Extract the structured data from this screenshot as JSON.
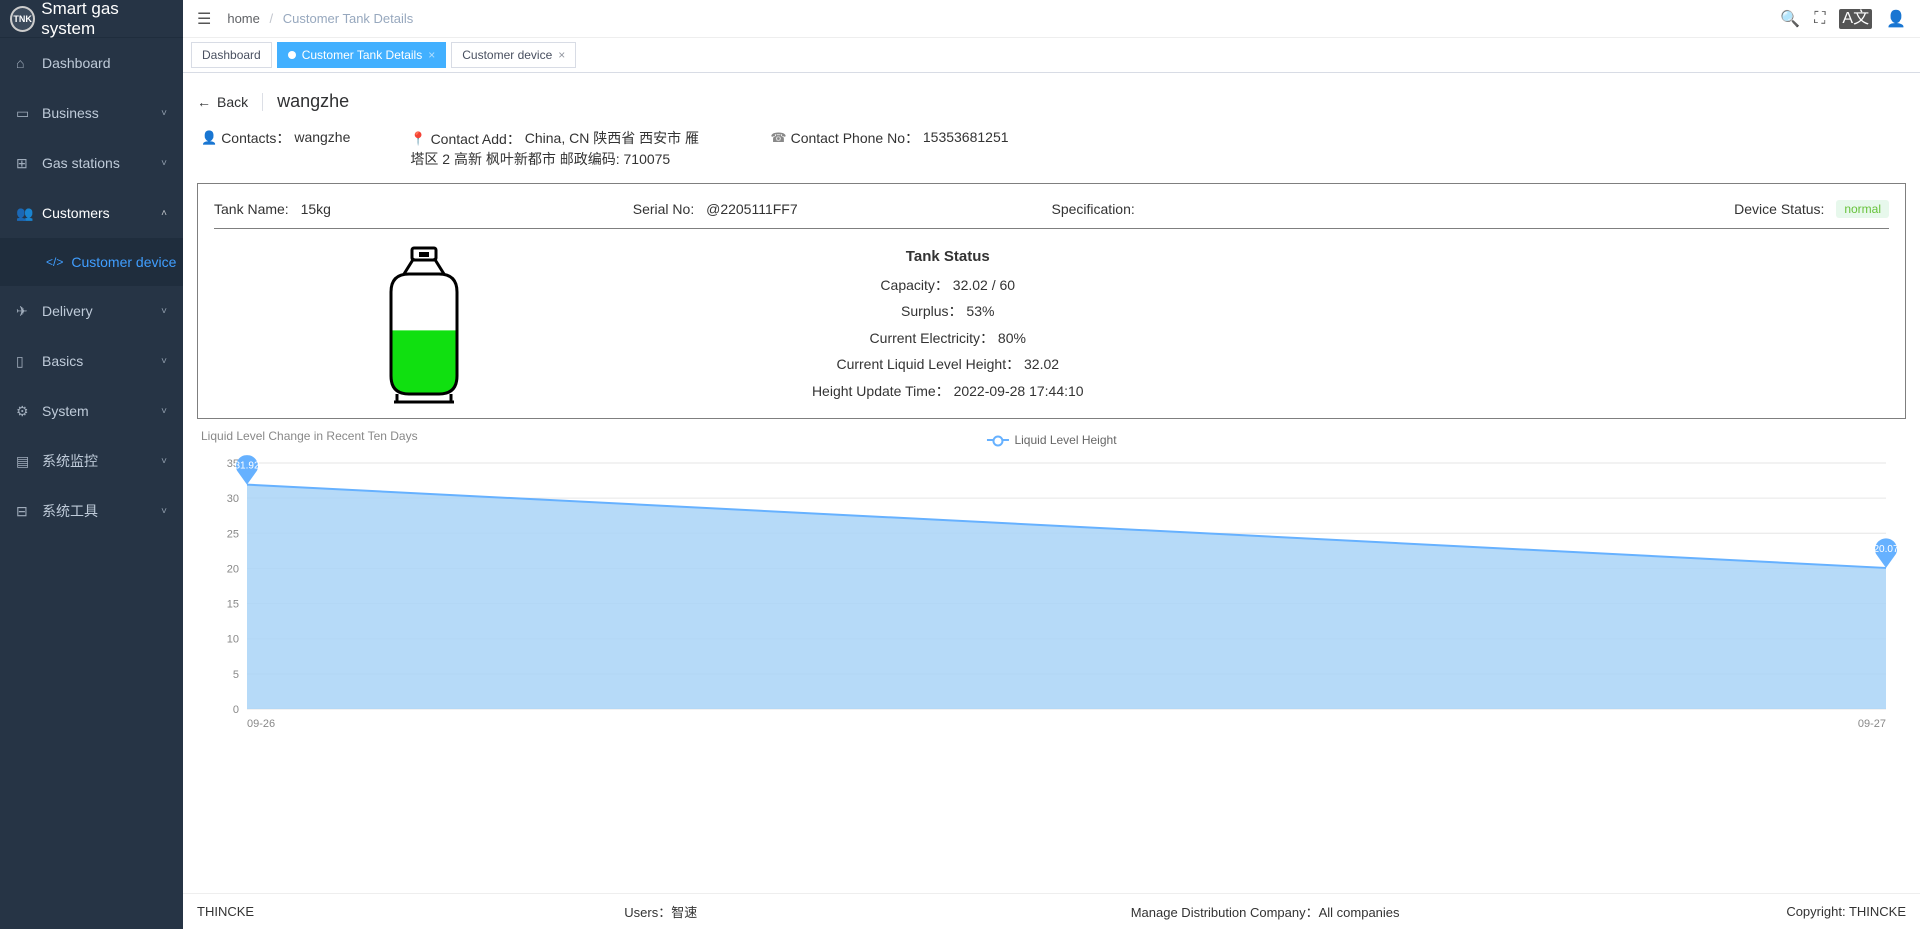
{
  "brand": {
    "badge": "TNK",
    "name": "Smart gas system"
  },
  "sidebar": {
    "items": [
      {
        "label": "Dashboard",
        "icon": "⌂"
      },
      {
        "label": "Business",
        "icon": "▭",
        "chev": "˅"
      },
      {
        "label": "Gas stations",
        "icon": "⊞",
        "chev": "˅"
      },
      {
        "label": "Customers",
        "icon": "👥",
        "chev": "˄"
      },
      {
        "label": "Delivery",
        "icon": "✈",
        "chev": "˅"
      },
      {
        "label": "Basics",
        "icon": "▯",
        "chev": "˅"
      },
      {
        "label": "System",
        "icon": "⚙",
        "chev": "˅"
      },
      {
        "label": "系统监控",
        "icon": "▤",
        "chev": "˅"
      },
      {
        "label": "系统工具",
        "icon": "⊟",
        "chev": "˅"
      }
    ],
    "sub": {
      "icon": "</>",
      "label": "Customer device"
    }
  },
  "breadcrumb": {
    "home": "home",
    "current": "Customer Tank Details"
  },
  "tabs": [
    {
      "label": "Dashboard",
      "closable": false
    },
    {
      "label": "Customer Tank Details",
      "closable": true,
      "active": true
    },
    {
      "label": "Customer device",
      "closable": true
    }
  ],
  "page": {
    "back": "Back",
    "title": "wangzhe",
    "contacts_label": "Contacts：",
    "contacts_value": "wangzhe",
    "addr_label": "Contact Add：",
    "addr_value": "China, CN 陕西省 西安市 雁塔区 2 高新 枫叶新都市 邮政编码: 710075",
    "phone_label": "Contact Phone No：",
    "phone_value": "15353681251"
  },
  "tank": {
    "name_label": "Tank Name:",
    "name_value": "15kg",
    "serial_label": "Serial No:",
    "serial_value": "@2205111FF7",
    "spec_label": "Specification:",
    "spec_value": "",
    "status_label": "Device Status:",
    "status_value": "normal",
    "fill_pct": 53,
    "liquid_color": "#10e010",
    "outline_color": "#000000",
    "ts_title": "Tank Status",
    "rows": [
      {
        "k": "Capacity：",
        "v": "32.02 / 60"
      },
      {
        "k": "Surplus：",
        "v": "53%"
      },
      {
        "k": "Current Electricity：",
        "v": "80%"
      },
      {
        "k": "Current Liquid Level Height：",
        "v": "32.02"
      },
      {
        "k": "Height Update Time：",
        "v": "2022-09-28 17:44:10"
      }
    ]
  },
  "chart": {
    "title": "Liquid Level Change in Recent Ten Days",
    "legend": "Liquid Level Height",
    "type": "area",
    "line_color": "#66b1ff",
    "area_color": "#a9d4f7",
    "grid_color": "#e6e6e6",
    "background": "#ffffff",
    "marker_fill": "#66b1ff",
    "marker_label_color": "#ffffff",
    "axis_color": "#888888",
    "x_labels": [
      "09-26",
      "09-27"
    ],
    "y_ticks": [
      0,
      5,
      10,
      15,
      20,
      25,
      30,
      35
    ],
    "ylim": [
      0,
      35
    ],
    "points": [
      {
        "x": "09-26",
        "y": 31.92,
        "label": "31.92"
      },
      {
        "x": "09-27",
        "y": 20.07,
        "label": "20.07"
      }
    ]
  },
  "footer": {
    "company": "THINCKE",
    "users_label": "Users：",
    "users_value": "智速",
    "manage_label": "Manage Distribution Company：",
    "manage_value": "All companies",
    "copyright": "Copyright: THINCKE"
  },
  "lang": "A文"
}
